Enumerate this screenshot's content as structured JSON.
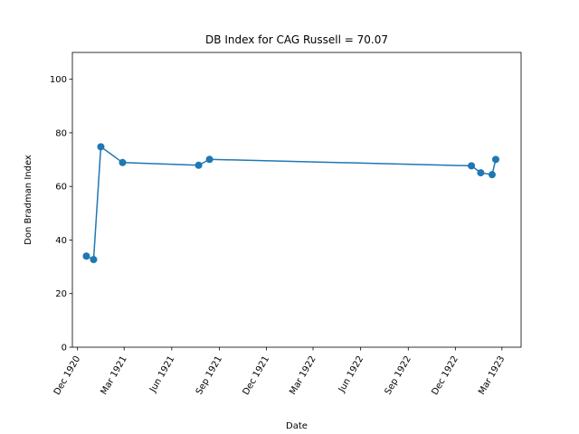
{
  "chart_data": {
    "type": "line",
    "title": "DB Index for CAG Russell = 70.07",
    "xlabel": "Date",
    "ylabel": "Don Bradman Index",
    "ylim": [
      0,
      110
    ],
    "xlim": [
      "1920-11-21",
      "1923-04-07"
    ],
    "yticks": [
      0,
      20,
      40,
      60,
      80,
      100
    ],
    "xticks": [
      {
        "date": "1920-12-01",
        "label": "Dec 1920"
      },
      {
        "date": "1921-03-01",
        "label": "Mar 1921"
      },
      {
        "date": "1921-06-01",
        "label": "Jun 1921"
      },
      {
        "date": "1921-09-01",
        "label": "Sep 1921"
      },
      {
        "date": "1921-12-01",
        "label": "Dec 1921"
      },
      {
        "date": "1922-03-01",
        "label": "Mar 1922"
      },
      {
        "date": "1922-06-01",
        "label": "Jun 1922"
      },
      {
        "date": "1922-09-01",
        "label": "Sep 1922"
      },
      {
        "date": "1922-12-01",
        "label": "Dec 1922"
      },
      {
        "date": "1923-03-01",
        "label": "Mar 1923"
      }
    ],
    "grid": false,
    "series": [
      {
        "color": "#1f77b4",
        "points": [
          {
            "x": "1920-12-18",
            "y": 34.0
          },
          {
            "x": "1921-01-01",
            "y": 32.7
          },
          {
            "x": "1921-01-15",
            "y": 74.8
          },
          {
            "x": "1921-02-26",
            "y": 68.9
          },
          {
            "x": "1921-07-23",
            "y": 67.9
          },
          {
            "x": "1921-08-13",
            "y": 70.1
          },
          {
            "x": "1923-01-01",
            "y": 67.7
          },
          {
            "x": "1923-01-19",
            "y": 65.1
          },
          {
            "x": "1923-02-10",
            "y": 64.4
          },
          {
            "x": "1923-02-17",
            "y": 70.07
          }
        ]
      }
    ]
  }
}
